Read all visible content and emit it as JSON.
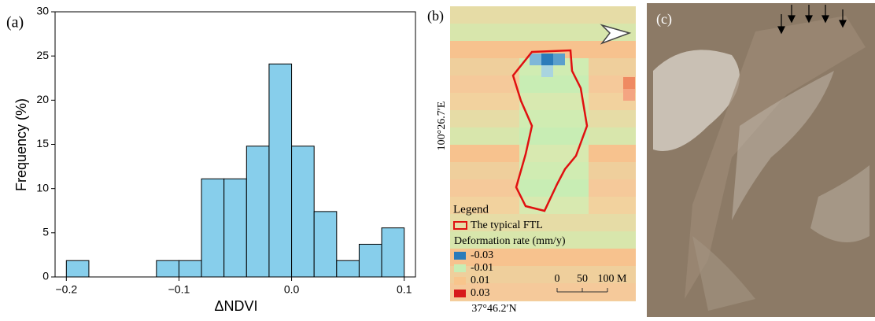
{
  "chart_data": {
    "type": "histogram",
    "panel_label": "(a)",
    "xlabel": "ΔNDVI",
    "ylabel": "Frequency (%)",
    "bins": [
      -0.2,
      -0.18,
      -0.16,
      -0.14,
      -0.12,
      -0.1,
      -0.08,
      -0.06,
      -0.04,
      -0.02,
      0,
      0.02,
      0.04,
      0.06,
      0.08,
      0.1
    ],
    "values": [
      1.85,
      0,
      0,
      0,
      1.85,
      1.85,
      11.1,
      11.1,
      14.8,
      24.1,
      14.8,
      7.4,
      1.85,
      3.7,
      5.55
    ],
    "color": "#87ceeb",
    "xlim": [
      -0.21,
      0.11
    ],
    "xticks": [
      {
        "value": -0.2,
        "label": "−0.2"
      },
      {
        "value": -0.1,
        "label": "−0.1"
      },
      {
        "value": 0,
        "label": "0.0"
      },
      {
        "value": 0.1,
        "label": "0.1"
      }
    ],
    "ylim": [
      0,
      30
    ],
    "yticks": [
      0,
      5,
      10,
      15,
      20,
      25,
      30
    ]
  },
  "map": {
    "panel_label": "(b)",
    "lon_label": "100°26.7′E",
    "lat_label": "37°46.2′N",
    "legend": {
      "title": "Legend",
      "outline": "The typical FTL",
      "rate_title": "Deformation rate (mm/y)",
      "items": [
        {
          "label": "-0.03",
          "color": "#2b7bba"
        },
        {
          "label": "-0.01",
          "color": "#c8edb4"
        },
        {
          "label": "0.01",
          "color": "#f8c58c"
        },
        {
          "label": "0.03",
          "color": "#d7191c"
        }
      ]
    },
    "scale": [
      "0",
      "50",
      "100 M"
    ]
  },
  "photo": {
    "panel_label": "(c)"
  }
}
